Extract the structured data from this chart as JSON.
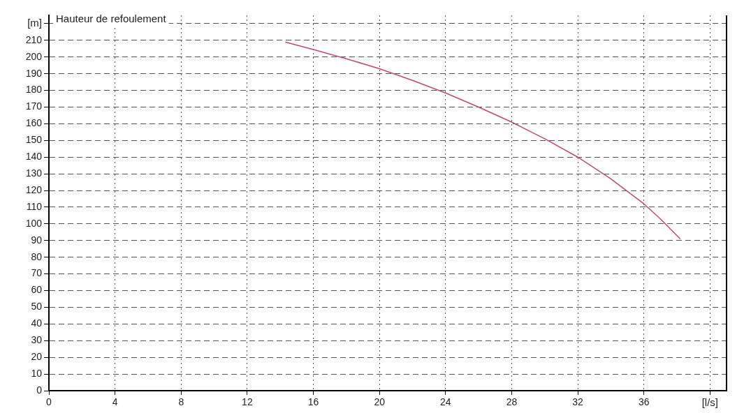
{
  "chart_data": {
    "type": "line",
    "title": "Hauteur de refoulement",
    "xlabel": "[l/s]",
    "ylabel": "[m]",
    "series": [
      {
        "color": "#c04a68",
        "x": [
          14.3,
          16,
          18,
          20,
          22,
          24,
          26,
          28,
          30,
          32,
          34,
          36,
          37,
          38.2
        ],
        "values": [
          209,
          204.5,
          199,
          193,
          186,
          178.5,
          170,
          161,
          151,
          140,
          127,
          112,
          103,
          91
        ]
      }
    ],
    "xlim": [
      0,
      41
    ],
    "xticks": [
      0,
      4,
      8,
      12,
      16,
      20,
      24,
      28,
      32,
      36,
      {
        "value": 40,
        "label": null
      }
    ],
    "ylim": [
      0,
      225
    ],
    "yticks": [
      0,
      10,
      20,
      30,
      40,
      50,
      60,
      70,
      80,
      90,
      100,
      110,
      120,
      130,
      140,
      150,
      160,
      170,
      180,
      190,
      200,
      210,
      {
        "value": 220,
        "label": null
      }
    ],
    "grid": true,
    "marker": "none",
    "line_style": "solid"
  }
}
